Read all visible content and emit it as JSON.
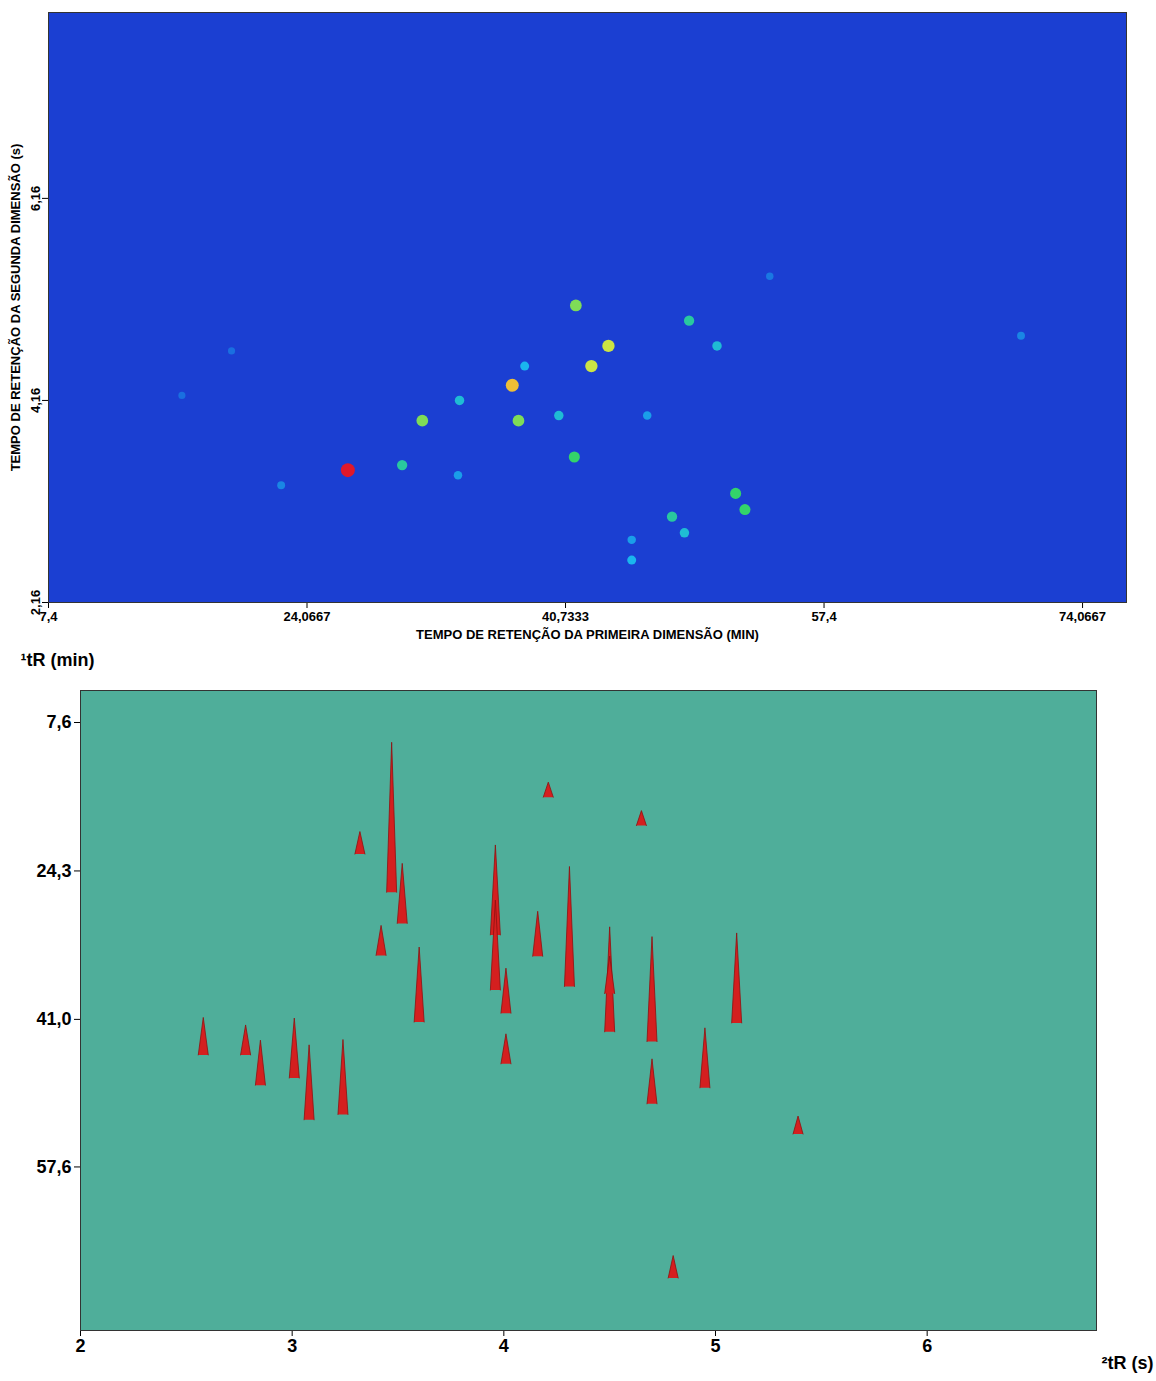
{
  "chart_data": [
    {
      "type": "heatmap",
      "xlabel": "TEMPO DE RETENÇÃO DA PRIMEIRA DIMENSÃO (MIN)",
      "ylabel": "TEMPO DE RETENÇÃO DA SEGUNDA DIMENSÃO (s)",
      "xlim": [
        7.4,
        76.9
      ],
      "ylim": [
        2.16,
        8.0
      ],
      "xticks": [
        {
          "value": 7.4,
          "label": "7,4"
        },
        {
          "value": 24.0667,
          "label": "24,0667"
        },
        {
          "value": 40.7333,
          "label": "40,7333"
        },
        {
          "value": 57.4,
          "label": "57,4"
        },
        {
          "value": 74.0667,
          "label": "74,0667"
        }
      ],
      "yticks": [
        {
          "value": 2.16,
          "label": "2,16"
        },
        {
          "value": 4.16,
          "label": "4,16"
        },
        {
          "value": 6.16,
          "label": "6,16"
        }
      ],
      "intensity_range": [
        0,
        100
      ],
      "peaks": {
        "x": [
          26.7,
          31.5,
          30.2,
          33.9,
          37.3,
          37.7,
          41.4,
          42.4,
          43.5,
          41.3,
          48.7,
          50.5,
          51.7,
          52.3,
          47.6,
          48.4,
          45.0,
          46.0,
          70.1,
          22.4,
          40.3,
          38.1,
          33.8,
          45.0,
          53.9,
          19.2,
          16.0
        ],
        "y": [
          3.47,
          3.96,
          3.52,
          4.16,
          4.31,
          3.96,
          5.1,
          4.5,
          4.7,
          3.6,
          4.95,
          4.7,
          3.24,
          3.08,
          3.01,
          2.85,
          2.58,
          4.01,
          4.8,
          3.32,
          4.01,
          4.5,
          3.42,
          2.78,
          5.39,
          4.65,
          4.21
        ],
        "intensity": [
          100,
          60,
          40,
          30,
          80,
          60,
          60,
          70,
          70,
          50,
          40,
          30,
          50,
          50,
          40,
          30,
          25,
          20,
          15,
          15,
          30,
          25,
          20,
          20,
          12,
          10,
          10
        ]
      }
    },
    {
      "type": "surface3d",
      "xlabel": "²tR (s)",
      "ylabel": "¹tR (min)",
      "xlim": [
        2,
        6.8
      ],
      "ylim": [
        76,
        4
      ],
      "xticks": [
        2,
        3,
        4,
        5,
        6
      ],
      "yticks": [
        {
          "value": 7.6,
          "label": "7,6"
        },
        {
          "value": 24.3,
          "label": "24,3"
        },
        {
          "value": 41.0,
          "label": "41,0"
        },
        {
          "value": 57.6,
          "label": "57,6"
        }
      ],
      "intensity_range": [
        0,
        100
      ],
      "peaks": {
        "x": [
          3.47,
          3.96,
          3.52,
          4.16,
          4.31,
          3.96,
          5.1,
          4.5,
          4.7,
          3.6,
          4.95,
          4.7,
          3.24,
          3.08,
          3.01,
          2.85,
          2.58,
          4.01,
          4.8,
          3.32,
          4.01,
          4.5,
          3.42,
          2.78,
          5.39,
          4.65,
          4.21
        ],
        "y": [
          26.7,
          31.5,
          30.2,
          33.9,
          37.3,
          37.7,
          41.4,
          42.4,
          43.5,
          41.3,
          48.7,
          50.5,
          51.7,
          52.3,
          47.6,
          48.4,
          45.0,
          46.0,
          70.1,
          22.4,
          40.3,
          38.1,
          33.8,
          45.0,
          53.9,
          19.2,
          16.0
        ],
        "intensity": [
          100,
          60,
          40,
          30,
          80,
          60,
          60,
          70,
          70,
          50,
          40,
          30,
          50,
          50,
          40,
          30,
          25,
          20,
          15,
          15,
          30,
          25,
          20,
          20,
          12,
          10,
          10
        ]
      }
    }
  ]
}
